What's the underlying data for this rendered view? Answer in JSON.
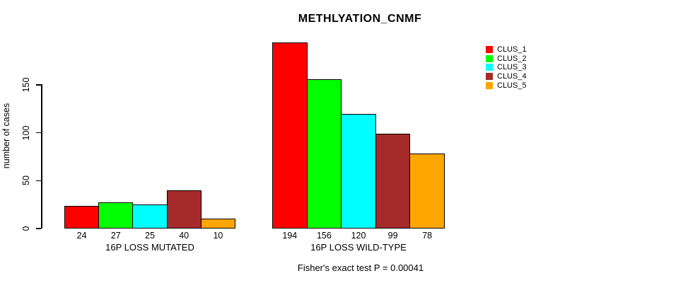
{
  "chart_data": {
    "type": "bar",
    "title": "METHLYATION_CNMF",
    "ylabel": "number of cases",
    "yticks": [
      0,
      50,
      100,
      150
    ],
    "ylim": [
      0,
      200
    ],
    "grid": false,
    "legend_position": "right-outside",
    "categories": [
      "16P LOSS MUTATED",
      "16P LOSS WILD-TYPE"
    ],
    "groups": [
      {
        "label": "16P LOSS MUTATED",
        "values": [
          24,
          27,
          25,
          40,
          10
        ]
      },
      {
        "label": "16P LOSS WILD-TYPE",
        "values": [
          194,
          156,
          120,
          99,
          78
        ]
      }
    ],
    "series": [
      {
        "name": "CLUS_1",
        "color": "#FF0000",
        "values": [
          24,
          194
        ]
      },
      {
        "name": "CLUS_2",
        "color": "#00FF00",
        "values": [
          27,
          156
        ]
      },
      {
        "name": "CLUS_3",
        "color": "#00FFFF",
        "values": [
          25,
          120
        ]
      },
      {
        "name": "CLUS_4",
        "color": "#A52A2A",
        "values": [
          40,
          99
        ]
      },
      {
        "name": "CLUS_5",
        "color": "#FFA500",
        "values": [
          10,
          78
        ]
      }
    ],
    "caption": "Fisher's exact test P = 0.00041",
    "colors": {
      "bar_border": "#000000",
      "axis": "#000000",
      "text": "#000000",
      "background": "#FFFFFF"
    }
  }
}
